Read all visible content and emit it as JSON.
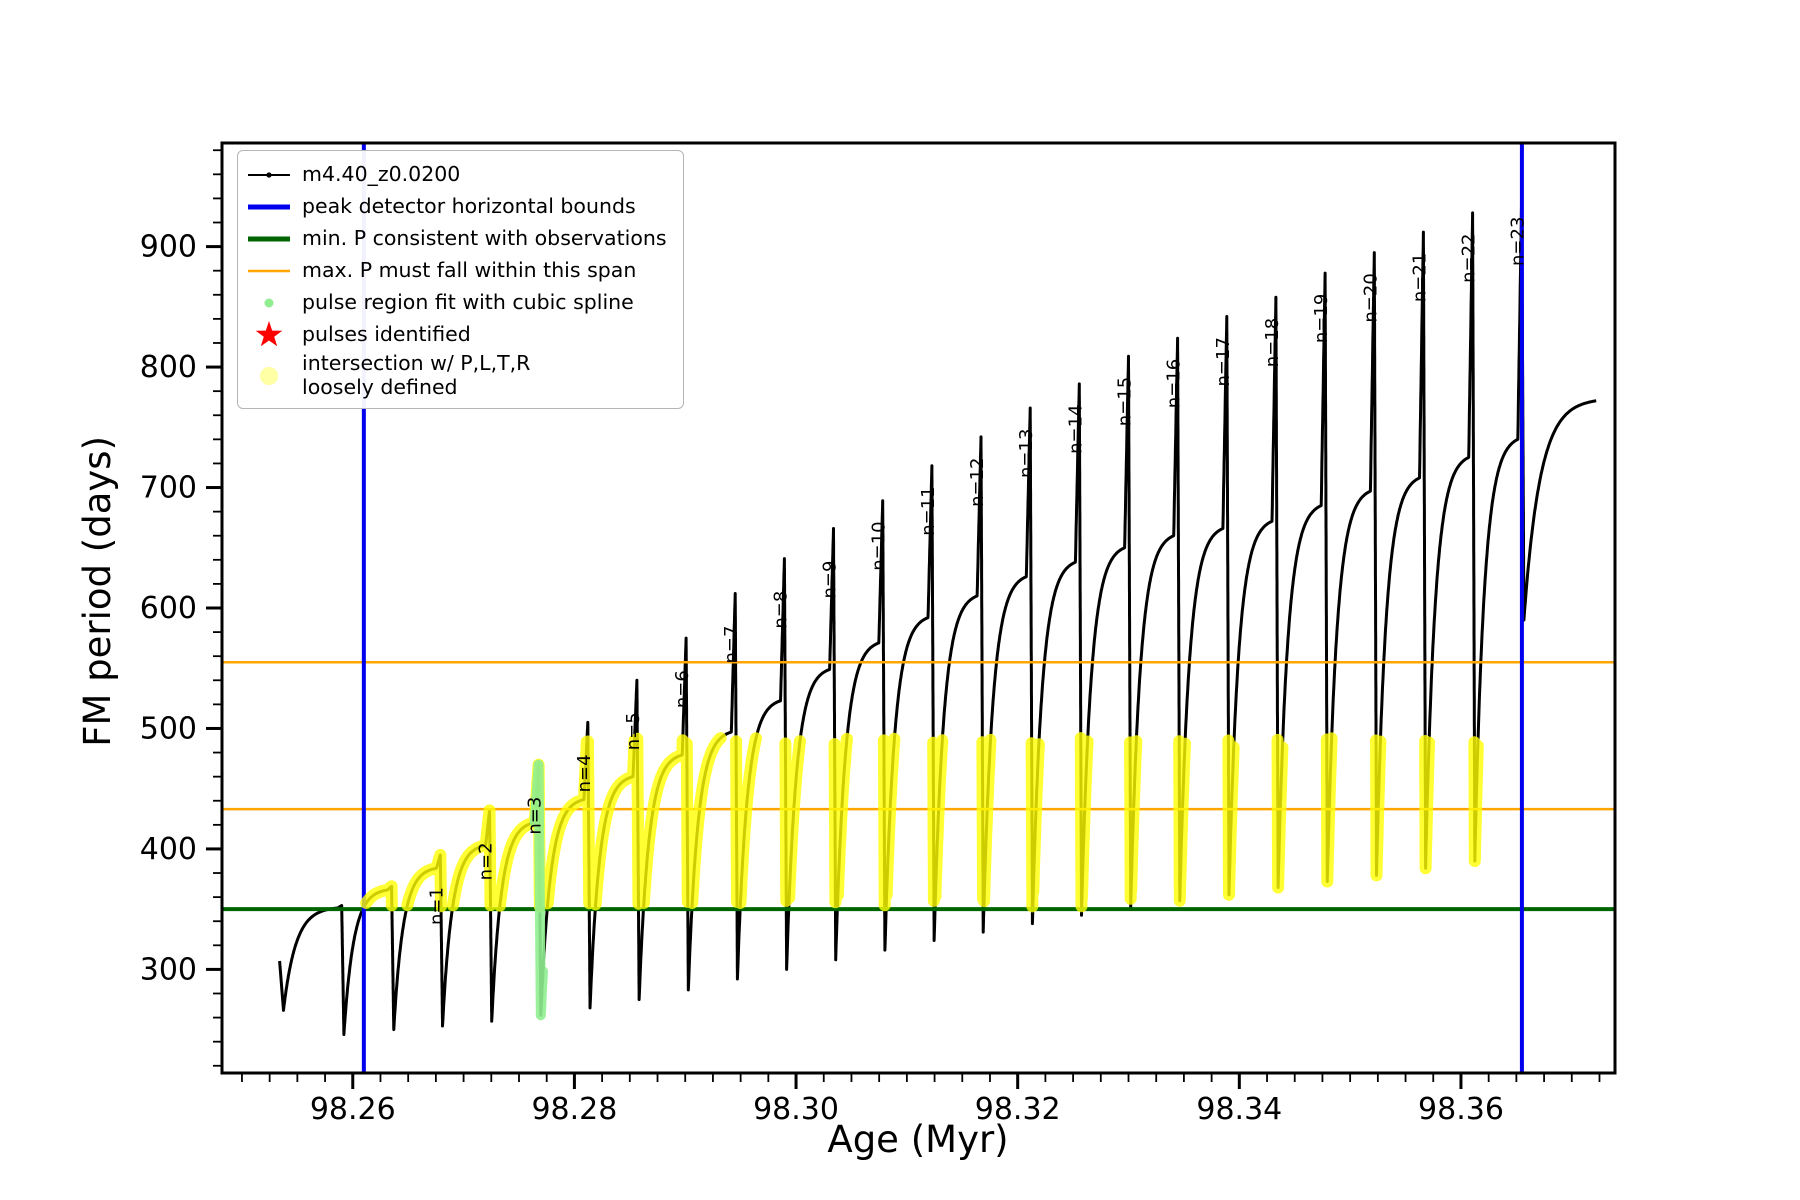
{
  "figure": {
    "xlabel": "Age (Myr)",
    "ylabel": "FM period (days)",
    "background": "#ffffff"
  },
  "legend": {
    "position": "upper-left",
    "items": [
      {
        "label": "m4.40_z0.0200",
        "marker": "line-dot",
        "color": "#000000"
      },
      {
        "label": "peak detector horizontal bounds",
        "marker": "line-thick",
        "color": "#0000ee"
      },
      {
        "label": "min. P consistent with observations",
        "marker": "line-thick",
        "color": "#006400"
      },
      {
        "label": "max. P must fall within this span",
        "marker": "line",
        "color": "#ffa500"
      },
      {
        "label": "pulse region fit with cubic spline",
        "marker": "dot-small",
        "color": "#90ee90"
      },
      {
        "label": "pulses identified",
        "marker": "star",
        "color": "#ff0000"
      },
      {
        "label": "intersection w/ P,L,T,R",
        "label2": "loosely defined",
        "marker": "dot-large",
        "color": "#ffff99"
      }
    ]
  },
  "chart_data": {
    "type": "line",
    "title": "",
    "xlabel": "Age (Myr)",
    "ylabel": "FM period (days)",
    "xlim": [
      98.2482,
      98.3739
    ],
    "ylim": [
      214,
      986
    ],
    "xticks": [
      98.26,
      98.28,
      98.3,
      98.32,
      98.34,
      98.36
    ],
    "yticks": [
      300,
      400,
      500,
      600,
      700,
      800,
      900
    ],
    "x_minor_step": 0.0025,
    "y_minor_step": 20,
    "grid": false,
    "legend_position": "upper left",
    "series": [
      {
        "name": "m4.40_z0.0200",
        "color": "#000000"
      }
    ],
    "vlines": [
      {
        "x": 98.261,
        "color": "#0000ee",
        "width": 4,
        "label": "peak detector horizontal bounds"
      },
      {
        "x": 98.3655,
        "color": "#0000ee",
        "width": 4,
        "label": "peak detector horizontal bounds"
      }
    ],
    "hlines": [
      {
        "y": 350,
        "color": "#006400",
        "width": 4,
        "label": "min. P consistent with observations"
      },
      {
        "y": 433,
        "color": "#ffa500",
        "width": 2.5,
        "label": "max. P must fall within this span"
      },
      {
        "y": 555,
        "color": "#ffa500",
        "width": 2.5,
        "label": "max. P must fall within this span"
      }
    ],
    "yellow_band": {
      "xmin": 98.2612,
      "ymin": 352,
      "ymax": 492,
      "color": "#ffff00",
      "opacity": 0.8,
      "meaning": "intersection w/ P,L,T,R loosely defined"
    },
    "green_region": {
      "xmin": 98.2764,
      "xmax": 98.2772,
      "ymin": 258,
      "ymax": 478,
      "color": "#90ee90",
      "opacity": 0.9,
      "meaning": "pulse region fit with cubic spline"
    },
    "start_point": {
      "x": 98.2534,
      "y": 307
    },
    "cycles": [
      {
        "trough_x": 98.2537,
        "trough_y": 262,
        "spike_x": 98.259,
        "hump_y": 351,
        "peak_y": 353,
        "label": ""
      },
      {
        "trough_x": 98.2592,
        "trough_y": 246,
        "spike_x": 98.2635,
        "hump_y": 366,
        "peak_y": 369,
        "label": ""
      },
      {
        "trough_x": 98.2637,
        "trough_y": 250,
        "spike_x": 98.2679,
        "hump_y": 384,
        "peak_y": 395,
        "label": "n=1"
      },
      {
        "trough_x": 98.2681,
        "trough_y": 253,
        "spike_x": 98.27234,
        "hump_y": 403,
        "peak_y": 432,
        "label": "n=2"
      },
      {
        "trough_x": 98.27254,
        "trough_y": 257,
        "spike_x": 98.27677,
        "hump_y": 422,
        "peak_y": 470,
        "label": "n=3"
      },
      {
        "trough_x": 98.27697,
        "trough_y": 262,
        "spike_x": 98.28121,
        "hump_y": 441,
        "peak_y": 505,
        "label": "n=4"
      },
      {
        "trough_x": 98.28141,
        "trough_y": 268,
        "spike_x": 98.28564,
        "hump_y": 460,
        "peak_y": 540,
        "label": "n=5"
      },
      {
        "trough_x": 98.28584,
        "trough_y": 275,
        "spike_x": 98.29008,
        "hump_y": 478,
        "peak_y": 575,
        "label": "n=6"
      },
      {
        "trough_x": 98.29028,
        "trough_y": 283,
        "spike_x": 98.29451,
        "hump_y": 497,
        "peak_y": 612,
        "label": "n=7"
      },
      {
        "trough_x": 98.29471,
        "trough_y": 292,
        "spike_x": 98.29895,
        "hump_y": 523,
        "peak_y": 641,
        "label": "n=8"
      },
      {
        "trough_x": 98.29915,
        "trough_y": 300,
        "spike_x": 98.30338,
        "hump_y": 549,
        "peak_y": 666,
        "label": "n=9"
      },
      {
        "trough_x": 98.30358,
        "trough_y": 308,
        "spike_x": 98.30782,
        "hump_y": 571,
        "peak_y": 689,
        "label": "n=10"
      },
      {
        "trough_x": 98.30802,
        "trough_y": 316,
        "spike_x": 98.31226,
        "hump_y": 592,
        "peak_y": 718,
        "label": "n=11"
      },
      {
        "trough_x": 98.31246,
        "trough_y": 324,
        "spike_x": 98.31669,
        "hump_y": 610,
        "peak_y": 742,
        "label": "n=12"
      },
      {
        "trough_x": 98.31689,
        "trough_y": 331,
        "spike_x": 98.32113,
        "hump_y": 626,
        "peak_y": 766,
        "label": "n=13"
      },
      {
        "trough_x": 98.32133,
        "trough_y": 338,
        "spike_x": 98.32556,
        "hump_y": 638,
        "peak_y": 786,
        "label": "n=14"
      },
      {
        "trough_x": 98.32576,
        "trough_y": 345,
        "spike_x": 98.33,
        "hump_y": 650,
        "peak_y": 809,
        "label": "n=15"
      },
      {
        "trough_x": 98.3302,
        "trough_y": 351,
        "spike_x": 98.33443,
        "hump_y": 660,
        "peak_y": 824,
        "label": "n=16"
      },
      {
        "trough_x": 98.33463,
        "trough_y": 357,
        "spike_x": 98.33887,
        "hump_y": 666,
        "peak_y": 842,
        "label": "n=17"
      },
      {
        "trough_x": 98.33907,
        "trough_y": 362,
        "spike_x": 98.3433,
        "hump_y": 672,
        "peak_y": 858,
        "label": "n=18"
      },
      {
        "trough_x": 98.3435,
        "trough_y": 368,
        "spike_x": 98.34774,
        "hump_y": 685,
        "peak_y": 878,
        "label": "n=19"
      },
      {
        "trough_x": 98.34794,
        "trough_y": 373,
        "spike_x": 98.35218,
        "hump_y": 697,
        "peak_y": 895,
        "label": "n=20"
      },
      {
        "trough_x": 98.35238,
        "trough_y": 378,
        "spike_x": 98.35661,
        "hump_y": 708,
        "peak_y": 912,
        "label": "n=21"
      },
      {
        "trough_x": 98.35681,
        "trough_y": 384,
        "spike_x": 98.36105,
        "hump_y": 725,
        "peak_y": 928,
        "label": "n=22"
      },
      {
        "trough_x": 98.36125,
        "trough_y": 390,
        "spike_x": 98.36548,
        "hump_y": 740,
        "peak_y": 942,
        "label": "n=23"
      },
      {
        "trough_x": 98.36568,
        "trough_y": 590,
        "spike_x": 98.3722,
        "hump_y": 772,
        "peak_y": null,
        "label": ""
      }
    ]
  }
}
